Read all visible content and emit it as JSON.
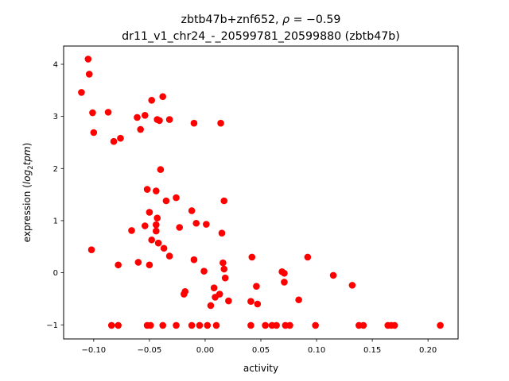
{
  "chart_data": {
    "type": "scatter",
    "title_line1_prefix": "zbtb47b+znf652, ",
    "title_rho_symbol": "ρ",
    "title_rho_value": " = −0.59",
    "title_line2": "dr11_v1_chr24_-_20599781_20599880 (zbtb47b)",
    "xlabel": "activity",
    "ylabel_prefix": "expression (",
    "ylabel_math_log": "log",
    "ylabel_math_sub": "2",
    "ylabel_math_tpm": "tpm",
    "ylabel_suffix": ")",
    "xlim": [
      -0.127,
      0.227
    ],
    "ylim": [
      -1.27,
      4.35
    ],
    "xticks": [
      -0.1,
      -0.05,
      0.0,
      0.05,
      0.1,
      0.15,
      0.2
    ],
    "xtick_labels": [
      "−0.10",
      "−0.05",
      "0.00",
      "0.05",
      "0.10",
      "0.15",
      "0.20"
    ],
    "yticks": [
      -1,
      0,
      1,
      2,
      3,
      4
    ],
    "ytick_labels": [
      "−1",
      "0",
      "1",
      "2",
      "3",
      "4"
    ],
    "grid": false,
    "marker_color": "#ff0000",
    "points": [
      [
        -0.105,
        4.1
      ],
      [
        -0.104,
        3.81
      ],
      [
        -0.111,
        3.46
      ],
      [
        -0.101,
        3.07
      ],
      [
        -0.1,
        2.69
      ],
      [
        -0.087,
        3.08
      ],
      [
        -0.082,
        2.52
      ],
      [
        -0.076,
        2.58
      ],
      [
        -0.061,
        2.98
      ],
      [
        -0.054,
        3.02
      ],
      [
        -0.048,
        3.31
      ],
      [
        -0.038,
        3.38
      ],
      [
        -0.043,
        2.94
      ],
      [
        -0.041,
        2.92
      ],
      [
        -0.032,
        2.94
      ],
      [
        -0.058,
        2.75
      ],
      [
        -0.01,
        2.87
      ],
      [
        0.014,
        2.87
      ],
      [
        -0.04,
        1.98
      ],
      [
        -0.052,
        1.6
      ],
      [
        -0.044,
        1.57
      ],
      [
        -0.035,
        1.38
      ],
      [
        -0.026,
        1.44
      ],
      [
        0.017,
        1.38
      ],
      [
        -0.012,
        1.19
      ],
      [
        -0.05,
        1.16
      ],
      [
        -0.043,
        1.05
      ],
      [
        -0.008,
        0.95
      ],
      [
        0.001,
        0.93
      ],
      [
        -0.044,
        0.92
      ],
      [
        -0.054,
        0.9
      ],
      [
        -0.066,
        0.81
      ],
      [
        -0.044,
        0.8
      ],
      [
        -0.023,
        0.87
      ],
      [
        0.015,
        0.76
      ],
      [
        -0.048,
        0.63
      ],
      [
        -0.042,
        0.57
      ],
      [
        -0.037,
        0.47
      ],
      [
        -0.102,
        0.44
      ],
      [
        -0.032,
        0.32
      ],
      [
        -0.01,
        0.25
      ],
      [
        -0.06,
        0.2
      ],
      [
        -0.078,
        0.15
      ],
      [
        -0.05,
        0.15
      ],
      [
        0.016,
        0.19
      ],
      [
        0.017,
        0.07
      ],
      [
        0.042,
        0.3
      ],
      [
        0.092,
        0.3
      ],
      [
        -0.001,
        0.03
      ],
      [
        0.069,
        0.02
      ],
      [
        0.071,
        -0.01
      ],
      [
        0.018,
        -0.1
      ],
      [
        0.115,
        -0.05
      ],
      [
        0.071,
        -0.18
      ],
      [
        0.132,
        -0.24
      ],
      [
        0.046,
        -0.26
      ],
      [
        0.008,
        -0.29
      ],
      [
        -0.018,
        -0.36
      ],
      [
        -0.019,
        -0.41
      ],
      [
        0.013,
        -0.41
      ],
      [
        0.009,
        -0.47
      ],
      [
        0.084,
        -0.52
      ],
      [
        0.021,
        -0.54
      ],
      [
        0.041,
        -0.55
      ],
      [
        0.047,
        -0.6
      ],
      [
        0.005,
        -0.63
      ],
      [
        -0.084,
        -1.01
      ],
      [
        -0.078,
        -1.01
      ],
      [
        -0.052,
        -1.01
      ],
      [
        -0.049,
        -1.01
      ],
      [
        -0.038,
        -1.01
      ],
      [
        -0.026,
        -1.01
      ],
      [
        -0.012,
        -1.01
      ],
      [
        -0.005,
        -1.01
      ],
      [
        0.002,
        -1.01
      ],
      [
        0.01,
        -1.01
      ],
      [
        0.041,
        -1.01
      ],
      [
        0.054,
        -1.01
      ],
      [
        0.06,
        -1.01
      ],
      [
        0.064,
        -1.01
      ],
      [
        0.072,
        -1.01
      ],
      [
        0.076,
        -1.01
      ],
      [
        0.099,
        -1.01
      ],
      [
        0.138,
        -1.01
      ],
      [
        0.142,
        -1.01
      ],
      [
        0.164,
        -1.01
      ],
      [
        0.167,
        -1.01
      ],
      [
        0.17,
        -1.01
      ],
      [
        0.211,
        -1.01
      ]
    ]
  }
}
